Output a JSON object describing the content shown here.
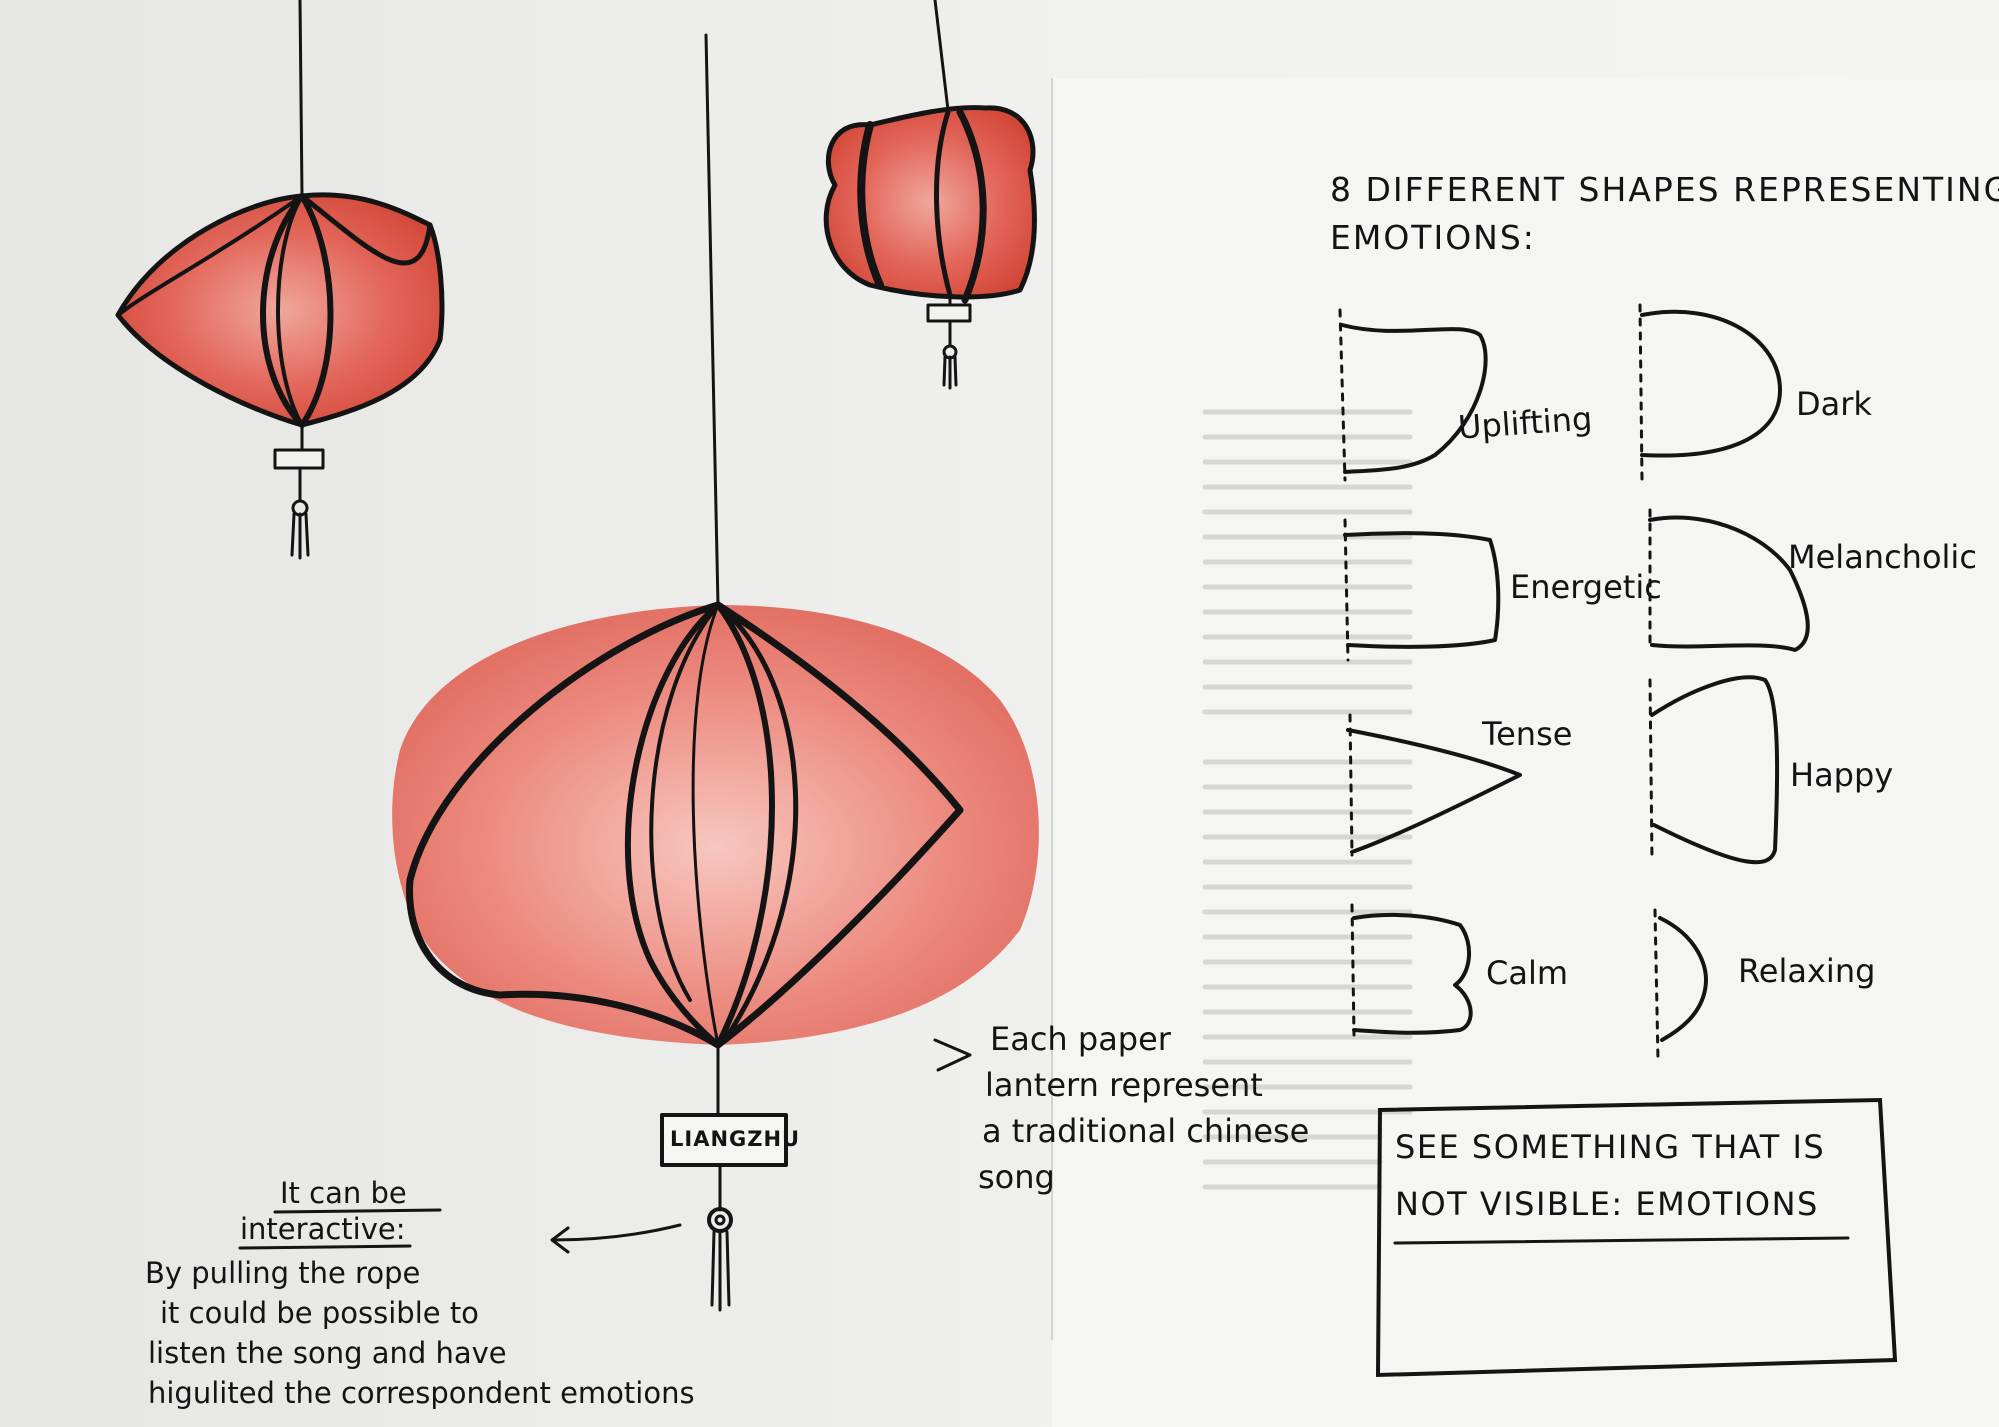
{
  "header": {
    "title_line_1": "8 DIFFERENT SHAPES REPRESENTING",
    "title_line_2": "EMOTIONS:"
  },
  "shapes": [
    {
      "label": "Uplifting"
    },
    {
      "label": "Dark"
    },
    {
      "label": "Energetic"
    },
    {
      "label": "Melancholic"
    },
    {
      "label": "Tense"
    },
    {
      "label": "Happy"
    },
    {
      "label": "Calm"
    },
    {
      "label": "Relaxing"
    }
  ],
  "lantern": {
    "tag": "LIANGZHU"
  },
  "notes": {
    "right_line_1": "Each paper",
    "right_line_2": "lantern represent",
    "right_line_3": "a traditional chinese",
    "right_line_4": "song",
    "left_heading_1": "It can be",
    "left_heading_2": "interactive:",
    "left_line_1": "By pulling the rope",
    "left_line_2": "it could be possible to",
    "left_line_3": "listen the song and have",
    "left_line_4": "higulited the correspondent emotions"
  },
  "box": {
    "line_1": "SEE SOMETHING THAT IS",
    "line_2": "NOT VISIBLE: EMOTIONS"
  },
  "colors": {
    "lantern_red": "#d9483e",
    "lantern_light": "#f2b3aa",
    "ink": "#141414",
    "paper": "#efefed"
  }
}
